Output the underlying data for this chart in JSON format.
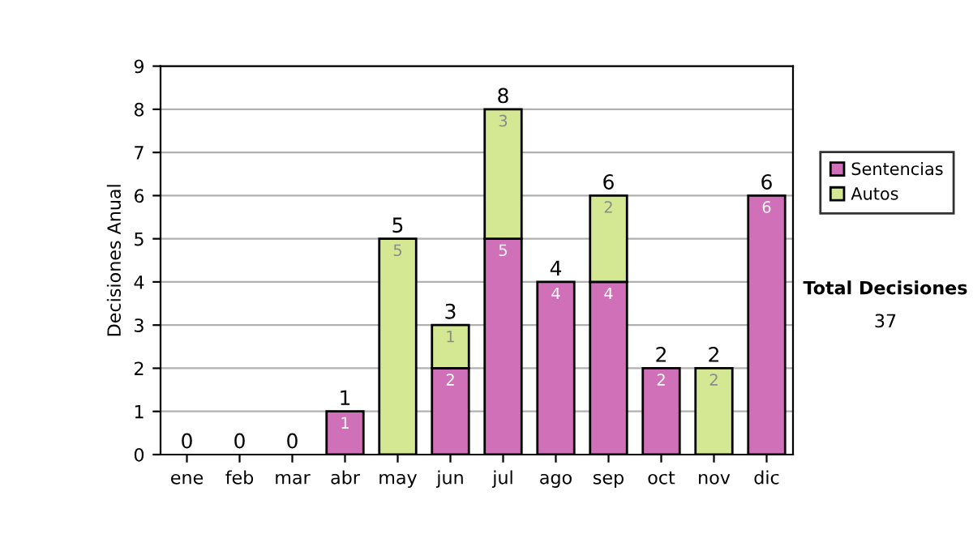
{
  "chart_data": {
    "type": "bar",
    "stacked": true,
    "ylabel": "Decisiones Anual",
    "categories": [
      "ene",
      "feb",
      "mar",
      "abr",
      "may",
      "jun",
      "jul",
      "ago",
      "sep",
      "oct",
      "nov",
      "dic"
    ],
    "series": [
      {
        "name": "Sentencias",
        "color": "#d070b8",
        "values": [
          0,
          0,
          0,
          1,
          0,
          2,
          5,
          4,
          4,
          2,
          0,
          6
        ],
        "value_labels": [
          null,
          null,
          null,
          "1",
          null,
          "2",
          "5",
          "4",
          "4",
          "2",
          null,
          "6"
        ]
      },
      {
        "name": "Autos",
        "color": "#d4e893",
        "values": [
          0,
          0,
          0,
          0,
          5,
          1,
          3,
          0,
          2,
          0,
          2,
          0
        ],
        "value_labels": [
          null,
          null,
          null,
          null,
          "5",
          "1",
          "3",
          null,
          "2",
          null,
          "2",
          null
        ]
      }
    ],
    "totals": [
      "0",
      "0",
      "0",
      "1",
      "5",
      "3",
      "8",
      "4",
      "6",
      "2",
      "2",
      "6"
    ],
    "ylim": [
      0,
      9
    ],
    "yticks": [
      0,
      1,
      2,
      3,
      4,
      5,
      6,
      7,
      8,
      9
    ],
    "grid": "y",
    "legend": "right",
    "annotations": [
      "Total Decisiones",
      "37"
    ]
  }
}
